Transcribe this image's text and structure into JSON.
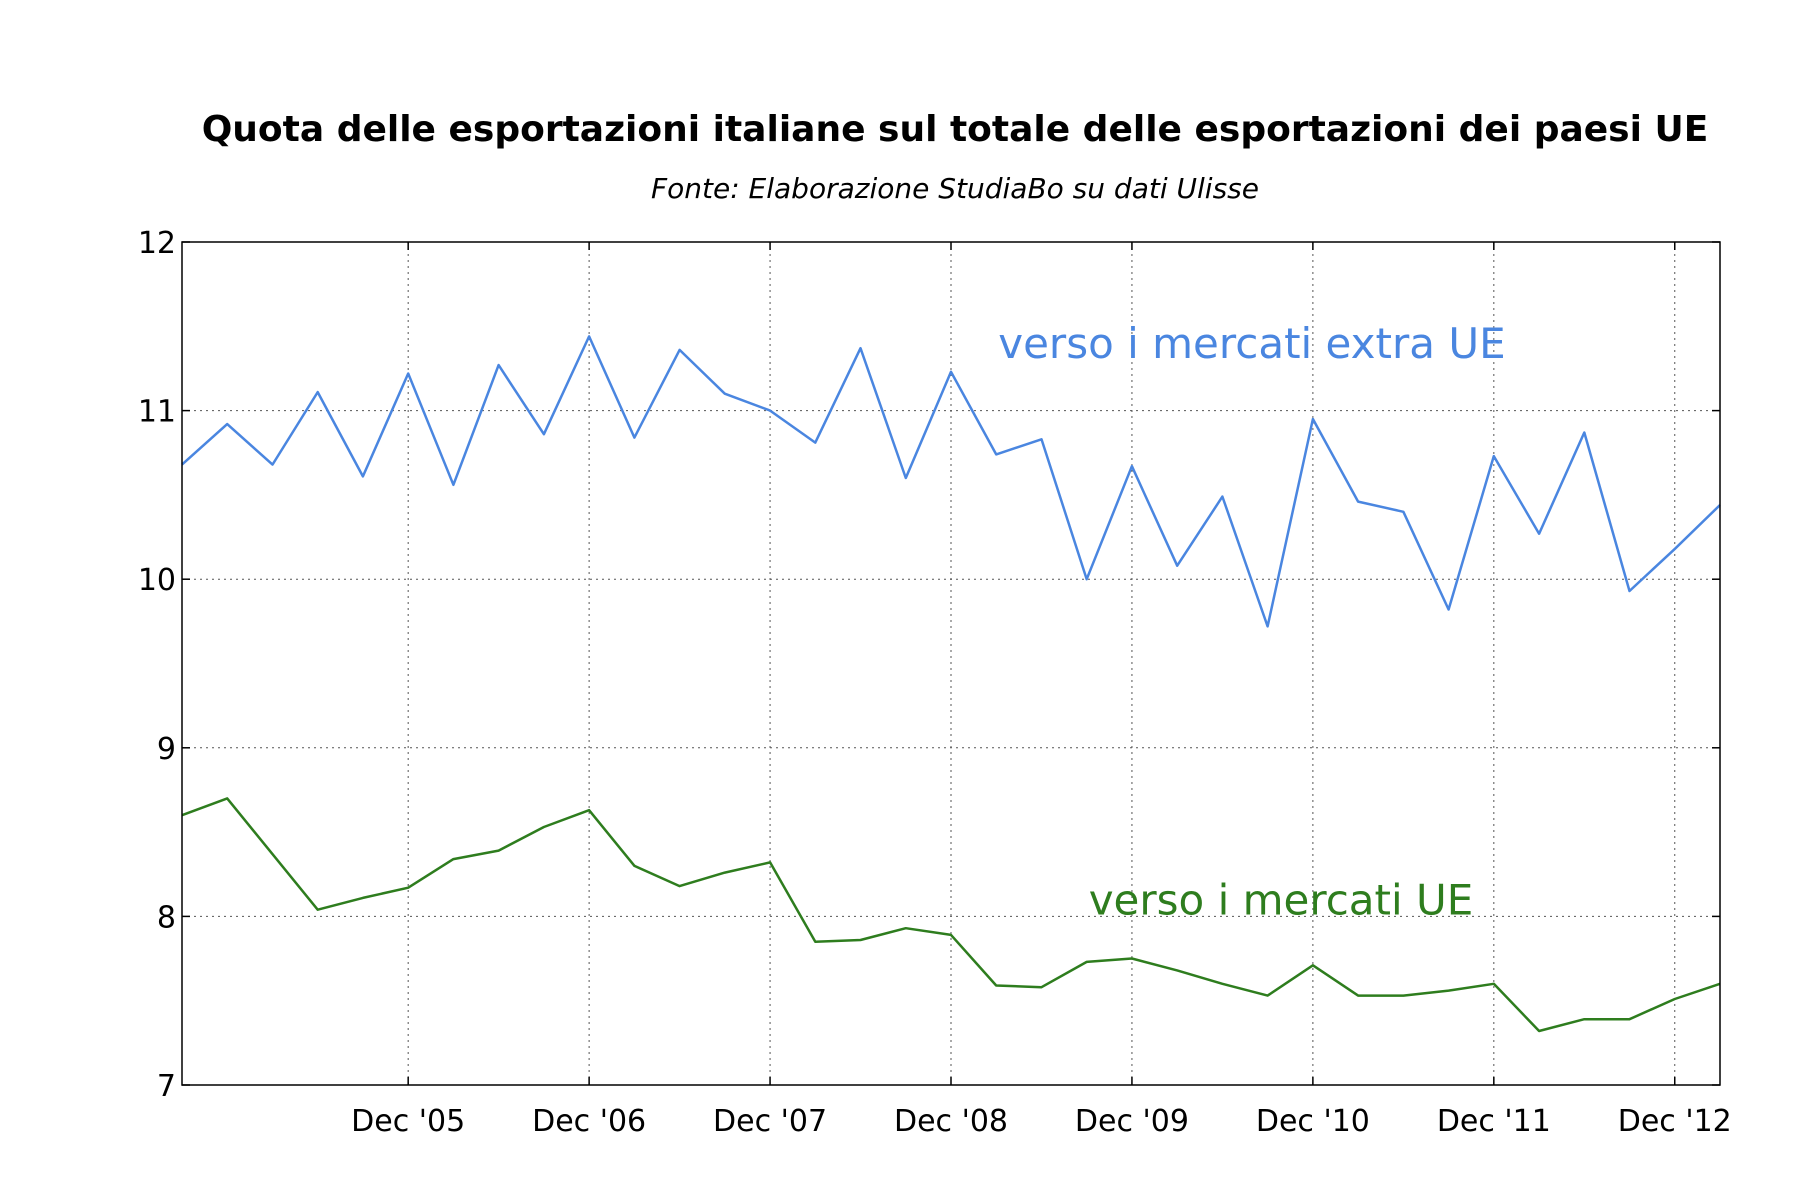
{
  "chart_data": {
    "type": "line",
    "title": "Quota delle esportazioni italiane sul totale delle esportazioni dei paesi UE",
    "subtitle": "Fonte: Elaborazione StudiaBo su dati Ulisse",
    "xlabel": "",
    "ylabel": "",
    "ylim": [
      7,
      12
    ],
    "yticks": [
      7,
      8,
      9,
      10,
      11,
      12
    ],
    "x_tick_labels": [
      "Dec '05",
      "Dec '06",
      "Dec '07",
      "Dec '08",
      "Dec '09",
      "Dec '10",
      "Dec '11",
      "Dec '12"
    ],
    "x_tick_dates": [
      "2005-12",
      "2006-12",
      "2007-12",
      "2008-12",
      "2009-12",
      "2010-12",
      "2011-12",
      "2012-12"
    ],
    "xlim": [
      "2004-09",
      "2013-03"
    ],
    "grid": true,
    "x": [
      "2004-09",
      "2004-12",
      "2005-03",
      "2005-06",
      "2005-09",
      "2005-12",
      "2006-03",
      "2006-06",
      "2006-09",
      "2006-12",
      "2007-03",
      "2007-06",
      "2007-09",
      "2007-12",
      "2008-03",
      "2008-06",
      "2008-09",
      "2008-12",
      "2009-03",
      "2009-06",
      "2009-09",
      "2009-12",
      "2010-03",
      "2010-06",
      "2010-09",
      "2010-12",
      "2011-03",
      "2011-06",
      "2011-09",
      "2011-12",
      "2012-03",
      "2012-06",
      "2012-09",
      "2012-12",
      "2013-03"
    ],
    "series": [
      {
        "name": "verso i mercati extra UE",
        "color": "#4a86e0",
        "annotation": {
          "text": "verso i mercati extra UE",
          "at": [
            "2009-03",
            11.4
          ],
          "align": "left"
        },
        "values": [
          10.68,
          10.92,
          10.68,
          11.11,
          10.61,
          11.22,
          10.56,
          11.27,
          10.86,
          11.44,
          10.84,
          11.36,
          11.1,
          11.0,
          10.81,
          11.37,
          10.6,
          11.23,
          10.74,
          10.83,
          10.0,
          10.67,
          10.08,
          10.49,
          9.72,
          10.95,
          10.46,
          10.4,
          9.82,
          10.73,
          10.27,
          10.87,
          9.93,
          10.18,
          10.44
        ]
      },
      {
        "name": "verso i mercati UE",
        "color": "#2e7d1e",
        "annotation": {
          "text": "verso i mercati UE",
          "at": [
            "2009-09",
            8.1
          ],
          "align": "left"
        },
        "values": [
          8.6,
          8.7,
          null,
          8.04,
          8.11,
          8.17,
          8.34,
          8.39,
          8.53,
          8.63,
          8.3,
          8.18,
          8.26,
          8.32,
          7.85,
          7.86,
          7.93,
          7.89,
          7.59,
          7.58,
          7.73,
          7.75,
          7.68,
          7.6,
          7.53,
          7.71,
          7.53,
          7.53,
          7.56,
          7.6,
          7.32,
          7.39,
          7.39,
          7.51,
          7.6
        ]
      }
    ]
  }
}
